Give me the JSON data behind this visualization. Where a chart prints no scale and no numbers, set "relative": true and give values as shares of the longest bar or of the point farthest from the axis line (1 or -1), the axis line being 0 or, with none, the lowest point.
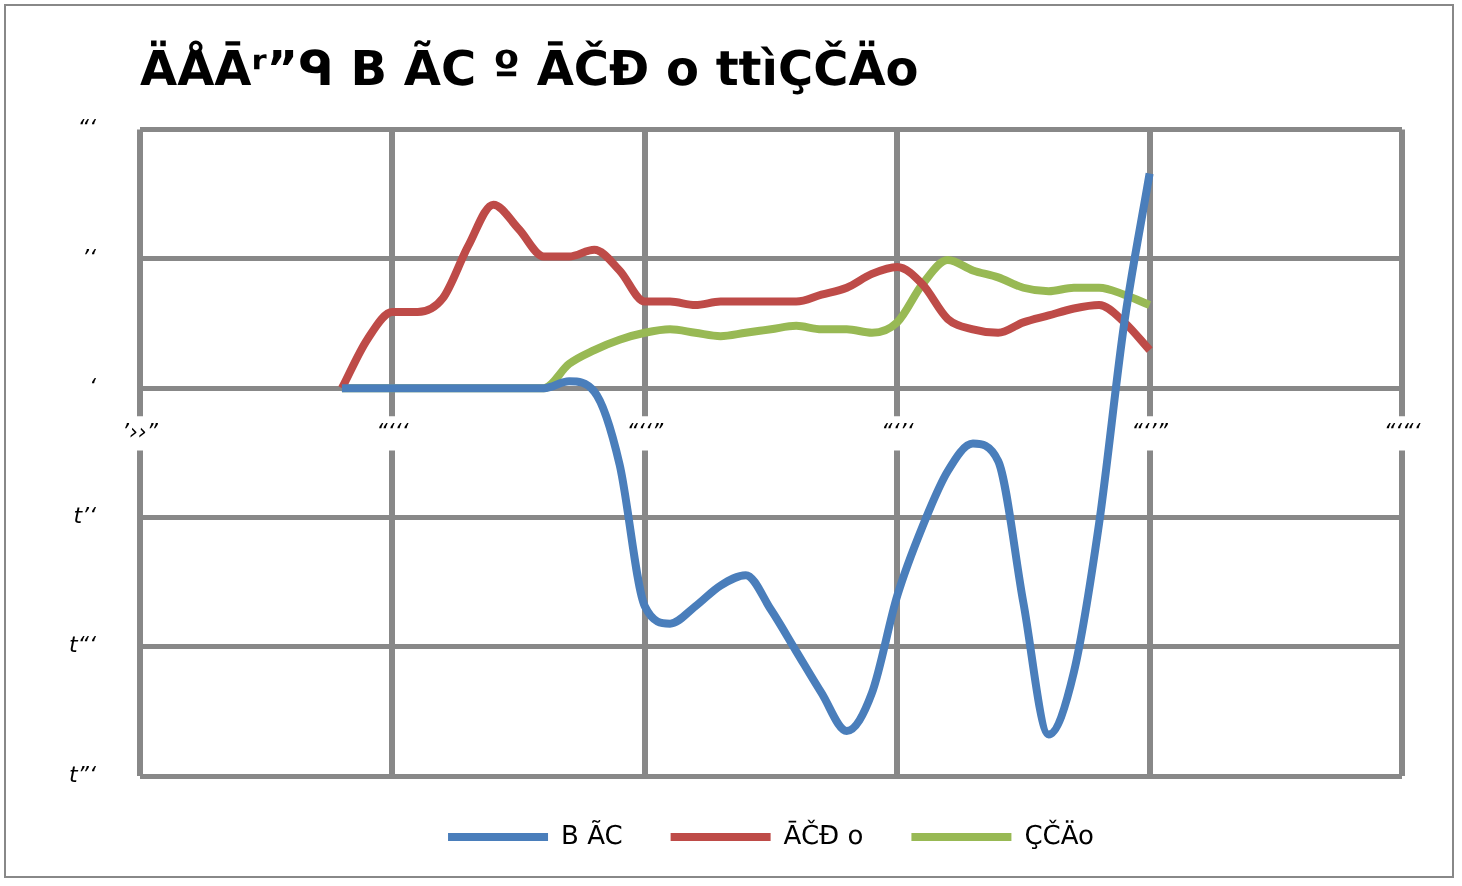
{
  "chart_data": {
    "type": "line",
    "title": "ÄÅĀʳ”ᑫ B ÃC º ĀČĐ o ttìÇČÄo",
    "relative": true,
    "categories": [
      "’››”",
      null,
      null,
      null,
      null,
      null,
      null,
      null,
      null,
      null,
      "“‘‘‘",
      null,
      null,
      null,
      null,
      null,
      null,
      null,
      null,
      null,
      "“‘‘”",
      null,
      null,
      null,
      null,
      null,
      null,
      null,
      null,
      null,
      "“‘’‘",
      null,
      null,
      null,
      null,
      null,
      null,
      null,
      null,
      null,
      "“‘’”",
      null,
      null,
      null,
      null,
      null,
      null,
      null,
      null,
      null,
      "“‘“‘"
    ],
    "annotations": [
      "“‘",
      "’‘",
      "‘",
      "t’‘",
      "t“‘",
      "t”‘"
    ],
    "grid": true,
    "legend": "bottom",
    "series": [
      {
        "name": "B ÃC",
        "color": "#4a7ebb",
        "values": [
          null,
          null,
          null,
          null,
          null,
          null,
          null,
          null,
          0,
          0,
          0,
          0,
          0,
          0,
          0,
          0,
          0,
          0.02,
          -0.01,
          -0.22,
          -0.63,
          -0.68,
          -0.63,
          -0.57,
          -0.54,
          -0.64,
          -0.76,
          -0.88,
          -0.99,
          -0.88,
          -0.6,
          -0.4,
          -0.24,
          -0.16,
          -0.21,
          -0.62,
          -1,
          -0.82,
          -0.39,
          0.19,
          0.62,
          null,
          null,
          null,
          null,
          null,
          null,
          null,
          null,
          null,
          null
        ]
      },
      {
        "name": "ĀČĐ o",
        "color": "#be4b48",
        "values": [
          null,
          null,
          null,
          null,
          null,
          null,
          null,
          null,
          0,
          0.14,
          0.22,
          0.22,
          0.26,
          0.41,
          0.53,
          0.46,
          0.38,
          0.38,
          0.4,
          0.34,
          0.25,
          0.25,
          0.24,
          0.25,
          0.25,
          0.25,
          0.25,
          0.27,
          0.29,
          0.33,
          0.35,
          0.3,
          0.2,
          0.17,
          0.16,
          0.19,
          0.21,
          0.23,
          0.24,
          0.19,
          0.11,
          null,
          null,
          null,
          null,
          null,
          null,
          null,
          null,
          null,
          null
        ]
      },
      {
        "name": "ÇČÄo",
        "color": "#98b954",
        "values": [
          null,
          null,
          null,
          null,
          null,
          null,
          null,
          null,
          0,
          0,
          0,
          0,
          0,
          0,
          0,
          0,
          0,
          0.07,
          0.11,
          0.14,
          0.16,
          0.17,
          0.16,
          0.15,
          0.16,
          0.17,
          0.18,
          0.17,
          0.17,
          0.16,
          0.19,
          0.3,
          0.37,
          0.34,
          0.32,
          0.29,
          0.28,
          0.29,
          0.29,
          0.27,
          0.24,
          null,
          null,
          null,
          null,
          null,
          null,
          null,
          null,
          null,
          null
        ]
      }
    ]
  }
}
